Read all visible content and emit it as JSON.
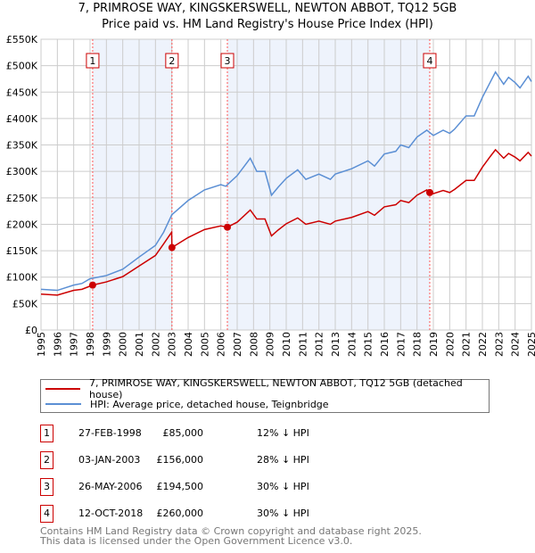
{
  "title_line1": "7, PRIMROSE WAY, KINGSKERSWELL, NEWTON ABBOT, TQ12 5GB",
  "title_line2": "Price paid vs. HM Land Registry's House Price Index (HPI)",
  "chart_data": {
    "type": "line",
    "title": "7, PRIMROSE WAY, KINGSKERSWELL, NEWTON ABBOT, TQ12 5GB - Price paid vs. HM Land Registry's House Price Index (HPI)",
    "xlim": [
      1995,
      2025
    ],
    "ylim": [
      0,
      550000
    ],
    "x_ticks": [
      "1995",
      "1996",
      "1997",
      "1998",
      "1999",
      "2000",
      "2001",
      "2002",
      "2003",
      "2004",
      "2005",
      "2006",
      "2007",
      "2008",
      "2009",
      "2010",
      "2011",
      "2012",
      "2013",
      "2014",
      "2015",
      "2016",
      "2017",
      "2018",
      "2019",
      "2020",
      "2021",
      "2022",
      "2023",
      "2024",
      "2025"
    ],
    "y_ticks": [
      {
        "v": 0,
        "label": "£0"
      },
      {
        "v": 50000,
        "label": "£50K"
      },
      {
        "v": 100000,
        "label": "£100K"
      },
      {
        "v": 150000,
        "label": "£150K"
      },
      {
        "v": 200000,
        "label": "£200K"
      },
      {
        "v": 250000,
        "label": "£250K"
      },
      {
        "v": 300000,
        "label": "£300K"
      },
      {
        "v": 350000,
        "label": "£350K"
      },
      {
        "v": 400000,
        "label": "£400K"
      },
      {
        "v": 450000,
        "label": "£450K"
      },
      {
        "v": 500000,
        "label": "£500K"
      },
      {
        "v": 550000,
        "label": "£550K"
      }
    ],
    "grid": true,
    "series": [
      {
        "name": "7, PRIMROSE WAY, KINGSKERSWELL, NEWTON ABBOT, TQ12 5GB (detached house)",
        "color": "#cc0000",
        "x": [
          1995,
          1996,
          1997,
          1997.5,
          1998.16,
          1999,
          2000,
          2001,
          2002,
          2002.5,
          2002.99,
          2003.01,
          2004,
          2005,
          2006,
          2006.4,
          2007,
          2007.8,
          2008.2,
          2008.7,
          2009.1,
          2009.5,
          2010,
          2010.7,
          2011.2,
          2012,
          2012.7,
          2013,
          2014,
          2015,
          2015.4,
          2016,
          2016.7,
          2017,
          2017.5,
          2018,
          2018.6,
          2018.78,
          2019,
          2019.6,
          2020,
          2020.3,
          2021,
          2021.5,
          2022,
          2022.5,
          2022.8,
          2023.3,
          2023.6,
          2024,
          2024.3,
          2024.8,
          2025
        ],
        "y": [
          68000,
          66000,
          75000,
          77000,
          85000,
          91000,
          101000,
          121000,
          141000,
          163000,
          185000,
          156000,
          175000,
          190000,
          197000,
          194500,
          204000,
          227000,
          210000,
          210000,
          178000,
          189000,
          201000,
          212000,
          200000,
          206000,
          200000,
          206000,
          213000,
          224000,
          217000,
          233000,
          237000,
          245000,
          241000,
          255000,
          265000,
          260000,
          258000,
          264000,
          260000,
          266000,
          283000,
          283000,
          308000,
          329000,
          341000,
          325000,
          334000,
          327000,
          320000,
          336000,
          329000
        ]
      },
      {
        "name": "HPI: Average price, detached house, Teignbridge",
        "color": "#5b8fd4",
        "x": [
          1995,
          1996,
          1997,
          1997.5,
          1998,
          1999,
          2000,
          2001,
          2002,
          2002.5,
          2003,
          2004,
          2005,
          2006,
          2006.3,
          2007,
          2007.8,
          2008.2,
          2008.7,
          2009.1,
          2009.5,
          2010,
          2010.7,
          2011.2,
          2012,
          2012.7,
          2013,
          2014,
          2015,
          2015.4,
          2016,
          2016.7,
          2017,
          2017.5,
          2018,
          2018.6,
          2019,
          2019.6,
          2020,
          2020.3,
          2021,
          2021.5,
          2022,
          2022.5,
          2022.8,
          2023.3,
          2023.6,
          2024,
          2024.3,
          2024.8,
          2025
        ],
        "y": [
          77000,
          75000,
          85000,
          88000,
          97000,
          103000,
          115000,
          138000,
          160000,
          185000,
          218000,
          245000,
          265000,
          275000,
          272000,
          292000,
          325000,
          300000,
          300000,
          255000,
          270000,
          287000,
          303000,
          285000,
          295000,
          285000,
          295000,
          305000,
          320000,
          310000,
          333000,
          338000,
          350000,
          345000,
          365000,
          378000,
          368000,
          378000,
          372000,
          380000,
          405000,
          405000,
          440000,
          470000,
          488000,
          465000,
          478000,
          468000,
          458000,
          480000,
          470000
        ]
      }
    ],
    "sales": [
      {
        "n": "1",
        "x": 1998.16,
        "y": 85000,
        "date": "27-FEB-1998",
        "price": "£85,000",
        "hpi": "12% ↓ HPI"
      },
      {
        "n": "2",
        "x": 2003.01,
        "y": 156000,
        "date": "03-JAN-2003",
        "price": "£156,000",
        "hpi": "28% ↓ HPI"
      },
      {
        "n": "3",
        "x": 2006.4,
        "y": 194500,
        "date": "26-MAY-2006",
        "price": "£194,500",
        "hpi": "30% ↓ HPI"
      },
      {
        "n": "4",
        "x": 2018.78,
        "y": 260000,
        "date": "12-OCT-2018",
        "price": "£260,000",
        "hpi": "30% ↓ HPI"
      }
    ],
    "shaded": [
      [
        1998.16,
        2003.01
      ],
      [
        2006.4,
        2018.78
      ]
    ],
    "legend": "bottom"
  },
  "footer1": "Contains HM Land Registry data © Crown copyright and database right 2025.",
  "footer2": "This data is licensed under the Open Government Licence v3.0."
}
